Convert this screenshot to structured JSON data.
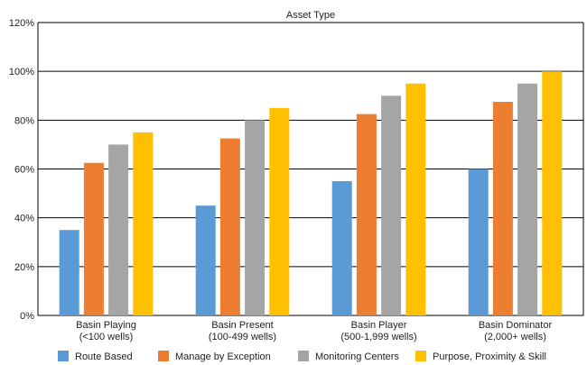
{
  "chart_data": {
    "type": "bar",
    "title": "Asset Type",
    "categories": [
      [
        "Basin Playing",
        "(<100 wells)"
      ],
      [
        "Basin Present",
        "(100-499 wells)"
      ],
      [
        "Basin Player",
        "(500-1,999 wells)"
      ],
      [
        "Basin Dominator",
        "(2,000+ wells)"
      ]
    ],
    "series": [
      {
        "name": "Route Based",
        "color": "#5b9bd5",
        "values": [
          35,
          45,
          55,
          60
        ]
      },
      {
        "name": "Manage by Exception",
        "color": "#ed7d31",
        "values": [
          62.5,
          72.5,
          82.5,
          87.5
        ]
      },
      {
        "name": "Monitoring Centers",
        "color": "#a5a5a5",
        "values": [
          70,
          80,
          90,
          95
        ]
      },
      {
        "name": "Purpose, Proximity & Skill",
        "color": "#ffc000",
        "values": [
          75,
          85,
          95,
          100
        ]
      }
    ],
    "ylim": [
      0,
      120
    ],
    "yticks": [
      "0%",
      "20%",
      "40%",
      "60%",
      "80%",
      "100%",
      "120%"
    ],
    "grid": true,
    "legend_position": "bottom"
  }
}
